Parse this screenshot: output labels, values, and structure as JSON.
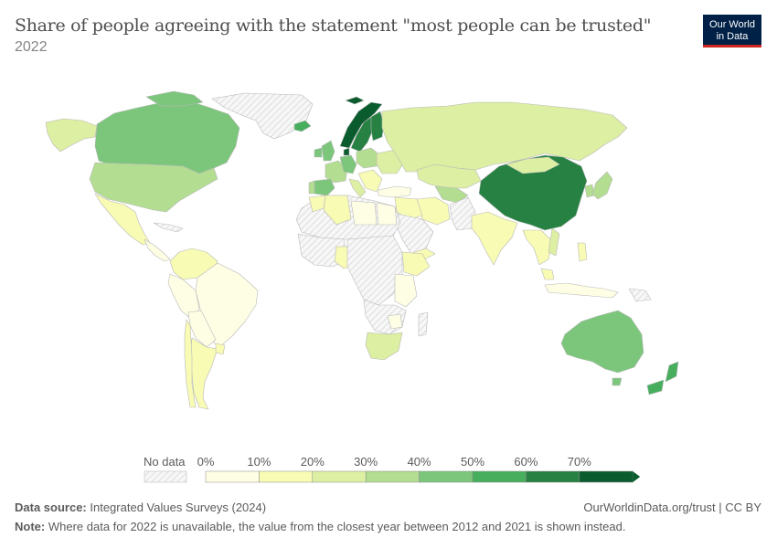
{
  "header": {
    "title": "Share of people agreeing with the statement \"most people can be trusted\"",
    "subtitle": "2022"
  },
  "logo": {
    "line1": "Our World",
    "line2": "in Data",
    "bg": "#002147",
    "accent": "#ce261e"
  },
  "legend": {
    "no_data_label": "No data",
    "ticks": [
      "0%",
      "10%",
      "20%",
      "30%",
      "40%",
      "50%",
      "60%",
      "70%"
    ],
    "bin_colors": [
      "#fefee5",
      "#f8fbb4",
      "#dcefa3",
      "#b3dd91",
      "#7cc67c",
      "#47ae5e",
      "#268142",
      "#0a5c2f"
    ]
  },
  "footer": {
    "source_label": "Data source:",
    "source_text": "Integrated Values Surveys (2024)",
    "link_text": "OurWorldinData.org/trust | CC BY",
    "note_label": "Note:",
    "note_text": "Where data for 2022 is unavailable, the value from the closest year between 2012 and 2021 is shown instead."
  },
  "map_data": {
    "metric": "Share agreeing most people can be trusted (%)",
    "regions": [
      {
        "name": "Canada",
        "bin": "40-50%"
      },
      {
        "name": "United States",
        "bin": "30-40%"
      },
      {
        "name": "Mexico",
        "bin": "10-20%"
      },
      {
        "name": "Brazil",
        "bin": "0-10%"
      },
      {
        "name": "Argentina",
        "bin": "10-20%"
      },
      {
        "name": "Chile",
        "bin": "10-20%"
      },
      {
        "name": "Norway",
        "bin": "70%+"
      },
      {
        "name": "Sweden",
        "bin": "60-70%"
      },
      {
        "name": "Finland",
        "bin": "60-70%"
      },
      {
        "name": "Denmark",
        "bin": "70%+"
      },
      {
        "name": "Germany",
        "bin": "40-50%"
      },
      {
        "name": "Spain",
        "bin": "40-50%"
      },
      {
        "name": "Russia",
        "bin": "20-30%"
      },
      {
        "name": "China",
        "bin": "60-70%"
      },
      {
        "name": "India",
        "bin": "10-20%"
      },
      {
        "name": "Australia",
        "bin": "40-50%"
      },
      {
        "name": "New Zealand",
        "bin": "50-60%"
      },
      {
        "name": "South Africa",
        "bin": "20-30%"
      },
      {
        "name": "Nigeria",
        "bin": "10-20%"
      },
      {
        "name": "Ethiopia",
        "bin": "10-20%"
      },
      {
        "name": "Iran",
        "bin": "10-20%"
      },
      {
        "name": "Japan",
        "bin": "30-40%"
      }
    ]
  }
}
